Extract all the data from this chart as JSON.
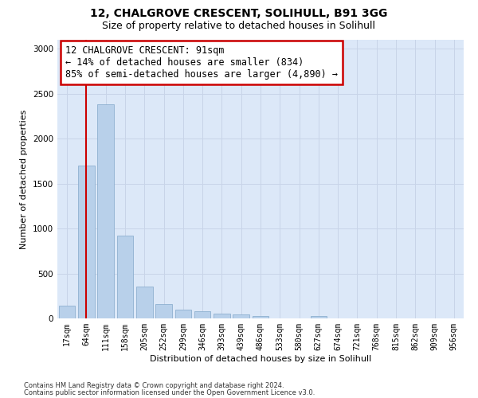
{
  "title1": "12, CHALGROVE CRESCENT, SOLIHULL, B91 3GG",
  "title2": "Size of property relative to detached houses in Solihull",
  "xlabel": "Distribution of detached houses by size in Solihull",
  "ylabel": "Number of detached properties",
  "categories": [
    "17sqm",
    "64sqm",
    "111sqm",
    "158sqm",
    "205sqm",
    "252sqm",
    "299sqm",
    "346sqm",
    "393sqm",
    "439sqm",
    "486sqm",
    "533sqm",
    "580sqm",
    "627sqm",
    "674sqm",
    "721sqm",
    "768sqm",
    "815sqm",
    "862sqm",
    "909sqm",
    "956sqm"
  ],
  "values": [
    140,
    1700,
    2380,
    920,
    350,
    160,
    100,
    80,
    55,
    45,
    25,
    0,
    0,
    30,
    0,
    0,
    0,
    0,
    0,
    0,
    0
  ],
  "bar_color": "#b8d0ea",
  "bar_edge_color": "#8fb0d0",
  "vline_x": 1.0,
  "vline_color": "#cc0000",
  "annotation_text": "12 CHALGROVE CRESCENT: 91sqm\n← 14% of detached houses are smaller (834)\n85% of semi-detached houses are larger (4,890) →",
  "annotation_box_edgecolor": "#cc0000",
  "ylim": [
    0,
    3100
  ],
  "yticks": [
    0,
    500,
    1000,
    1500,
    2000,
    2500,
    3000
  ],
  "grid_color": "#c8d4e8",
  "bg_color": "#dce8f8",
  "footer1": "Contains HM Land Registry data © Crown copyright and database right 2024.",
  "footer2": "Contains public sector information licensed under the Open Government Licence v3.0."
}
